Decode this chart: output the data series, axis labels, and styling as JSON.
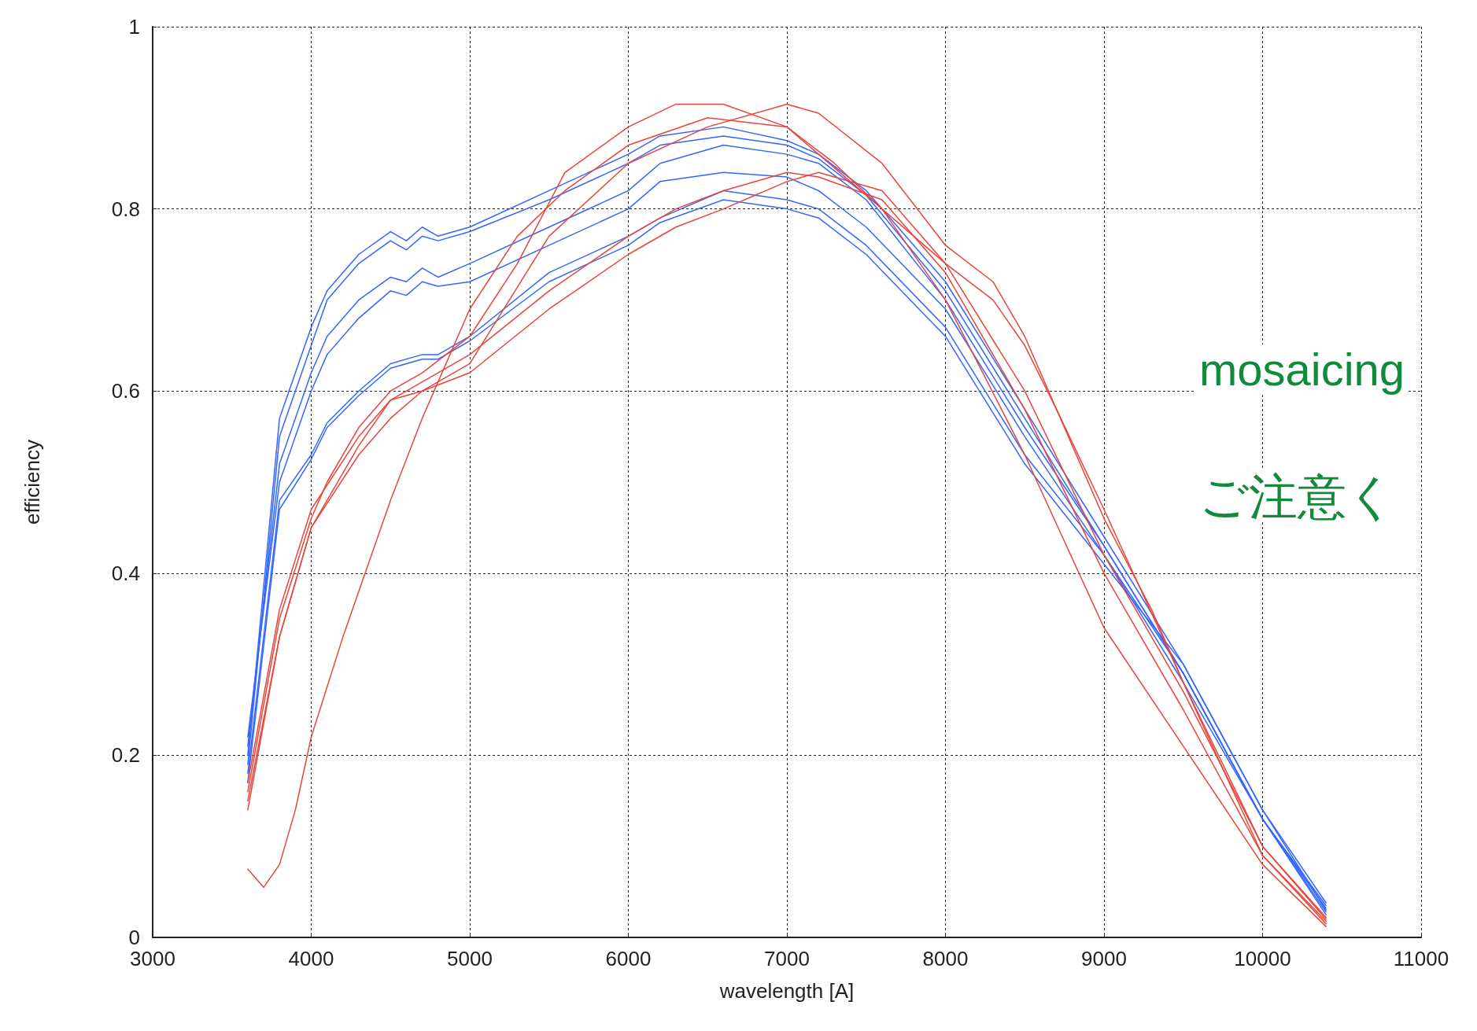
{
  "chart_data": {
    "type": "line",
    "xlabel": "wavelength [A]",
    "ylabel": "efficiency",
    "xlim": [
      3000,
      11000
    ],
    "xticks": [
      3000,
      4000,
      5000,
      6000,
      7000,
      8000,
      9000,
      10000,
      11000
    ],
    "ylim": [
      0,
      1
    ],
    "yticks": [
      0,
      0.2,
      0.4,
      0.6,
      0.8,
      1
    ],
    "grid": true,
    "marker": "none",
    "line_style": "solid",
    "annotations": [
      "mosaicing",
      "ご注意く"
    ],
    "series": [
      {
        "color": "#3366ff",
        "x": [
          3600,
          3800,
          4000,
          4100,
          4300,
          4500,
          4600,
          4700,
          4800,
          5000,
          5500,
          6000,
          6200,
          6600,
          7000,
          7200,
          7500,
          8000,
          8500,
          9000,
          9500,
          10000,
          10400
        ],
        "values": [
          0.2,
          0.57,
          0.67,
          0.71,
          0.75,
          0.775,
          0.765,
          0.78,
          0.77,
          0.78,
          0.82,
          0.86,
          0.88,
          0.89,
          0.875,
          0.86,
          0.82,
          0.72,
          0.58,
          0.44,
          0.3,
          0.14,
          0.03
        ]
      },
      {
        "color": "#3366ff",
        "x": [
          3600,
          3800,
          4000,
          4100,
          4300,
          4500,
          4600,
          4700,
          4800,
          5000,
          5500,
          6000,
          6200,
          6600,
          7000,
          7200,
          7500,
          8000,
          8500,
          9000,
          9500,
          10000,
          10400
        ],
        "values": [
          0.19,
          0.55,
          0.65,
          0.7,
          0.74,
          0.765,
          0.755,
          0.77,
          0.765,
          0.775,
          0.81,
          0.85,
          0.87,
          0.88,
          0.87,
          0.855,
          0.815,
          0.71,
          0.57,
          0.43,
          0.29,
          0.13,
          0.035
        ]
      },
      {
        "color": "#3366ff",
        "x": [
          3600,
          3800,
          4000,
          4100,
          4300,
          4500,
          4600,
          4700,
          4800,
          5000,
          5500,
          6000,
          6200,
          6600,
          7000,
          7200,
          7500,
          8000,
          8500,
          9000,
          9500,
          10000,
          10400
        ],
        "values": [
          0.21,
          0.52,
          0.62,
          0.66,
          0.7,
          0.725,
          0.72,
          0.735,
          0.725,
          0.74,
          0.78,
          0.82,
          0.85,
          0.87,
          0.86,
          0.85,
          0.81,
          0.7,
          0.56,
          0.43,
          0.29,
          0.13,
          0.028
        ]
      },
      {
        "color": "#3366ff",
        "x": [
          3600,
          3800,
          4000,
          4100,
          4300,
          4500,
          4600,
          4700,
          4800,
          5000,
          5500,
          6000,
          6200,
          6600,
          7000,
          7200,
          7500,
          8000,
          8500,
          9000,
          9500,
          10000,
          10400
        ],
        "values": [
          0.22,
          0.5,
          0.6,
          0.64,
          0.68,
          0.71,
          0.705,
          0.72,
          0.715,
          0.72,
          0.76,
          0.8,
          0.83,
          0.84,
          0.835,
          0.82,
          0.78,
          0.69,
          0.55,
          0.42,
          0.28,
          0.13,
          0.032
        ]
      },
      {
        "color": "#3366ff",
        "x": [
          3600,
          3800,
          4000,
          4100,
          4300,
          4500,
          4700,
          4800,
          5000,
          5500,
          6000,
          6200,
          6600,
          7000,
          7200,
          7500,
          8000,
          8500,
          9000,
          9500,
          10000,
          10400
        ],
        "values": [
          0.18,
          0.48,
          0.53,
          0.565,
          0.6,
          0.63,
          0.64,
          0.64,
          0.66,
          0.73,
          0.77,
          0.79,
          0.82,
          0.81,
          0.8,
          0.76,
          0.67,
          0.53,
          0.42,
          0.29,
          0.13,
          0.025
        ]
      },
      {
        "color": "#3366ff",
        "x": [
          3600,
          3800,
          4000,
          4100,
          4300,
          4500,
          4700,
          4800,
          5000,
          5500,
          6000,
          6200,
          6600,
          7000,
          7200,
          7500,
          8000,
          8500,
          9000,
          9500,
          10000,
          10400
        ],
        "values": [
          0.17,
          0.47,
          0.525,
          0.56,
          0.595,
          0.625,
          0.635,
          0.635,
          0.655,
          0.72,
          0.76,
          0.785,
          0.81,
          0.8,
          0.79,
          0.75,
          0.66,
          0.52,
          0.41,
          0.3,
          0.14,
          0.038
        ]
      },
      {
        "color": "#e8453c",
        "x": [
          3600,
          3800,
          4000,
          4100,
          4300,
          4500,
          4700,
          5000,
          5300,
          5600,
          6000,
          6300,
          6600,
          7000,
          7300,
          7600,
          8000,
          8300,
          8500,
          8700,
          9000,
          9300,
          9500,
          10000,
          10400
        ],
        "values": [
          0.16,
          0.35,
          0.46,
          0.5,
          0.56,
          0.6,
          0.62,
          0.66,
          0.74,
          0.84,
          0.89,
          0.915,
          0.915,
          0.89,
          0.85,
          0.8,
          0.74,
          0.7,
          0.65,
          0.58,
          0.46,
          0.36,
          0.28,
          0.1,
          0.02
        ]
      },
      {
        "color": "#e8453c",
        "x": [
          3600,
          3800,
          4000,
          4300,
          4500,
          4700,
          5000,
          5500,
          6000,
          6500,
          7000,
          7200,
          7600,
          8000,
          8300,
          8500,
          8700,
          9000,
          9500,
          10000,
          10400
        ],
        "values": [
          0.15,
          0.33,
          0.45,
          0.54,
          0.59,
          0.6,
          0.63,
          0.77,
          0.85,
          0.89,
          0.915,
          0.905,
          0.85,
          0.76,
          0.72,
          0.66,
          0.58,
          0.47,
          0.28,
          0.09,
          0.018
        ]
      },
      {
        "color": "#e8453c",
        "x": [
          3600,
          3800,
          4000,
          4300,
          4500,
          4700,
          5000,
          5500,
          6000,
          6300,
          6600,
          7000,
          7200,
          7600,
          8000,
          8500,
          9000,
          9500,
          10000,
          10400
        ],
        "values": [
          0.14,
          0.33,
          0.45,
          0.53,
          0.57,
          0.6,
          0.62,
          0.69,
          0.75,
          0.78,
          0.8,
          0.83,
          0.84,
          0.82,
          0.74,
          0.6,
          0.42,
          0.27,
          0.1,
          0.022
        ]
      },
      {
        "color": "#e8453c",
        "x": [
          3600,
          3800,
          4000,
          4300,
          4500,
          4700,
          5000,
          5500,
          6000,
          6300,
          6600,
          7000,
          7200,
          7600,
          8000,
          8500,
          9000,
          9500,
          10000,
          10400
        ],
        "values": [
          0.17,
          0.36,
          0.47,
          0.55,
          0.59,
          0.61,
          0.64,
          0.71,
          0.77,
          0.8,
          0.82,
          0.84,
          0.835,
          0.81,
          0.73,
          0.58,
          0.4,
          0.25,
          0.09,
          0.015
        ]
      },
      {
        "color": "#e8453c",
        "x": [
          3600,
          3700,
          3800,
          3900,
          4000,
          4200,
          4500,
          4700,
          5000,
          5300,
          5600,
          6000,
          6500,
          7000,
          7200,
          7600,
          8000,
          8500,
          9000,
          9500,
          10000,
          10400
        ],
        "values": [
          0.075,
          0.055,
          0.08,
          0.14,
          0.22,
          0.33,
          0.48,
          0.57,
          0.69,
          0.77,
          0.82,
          0.87,
          0.9,
          0.89,
          0.86,
          0.8,
          0.7,
          0.53,
          0.34,
          0.21,
          0.08,
          0.012
        ]
      }
    ]
  }
}
